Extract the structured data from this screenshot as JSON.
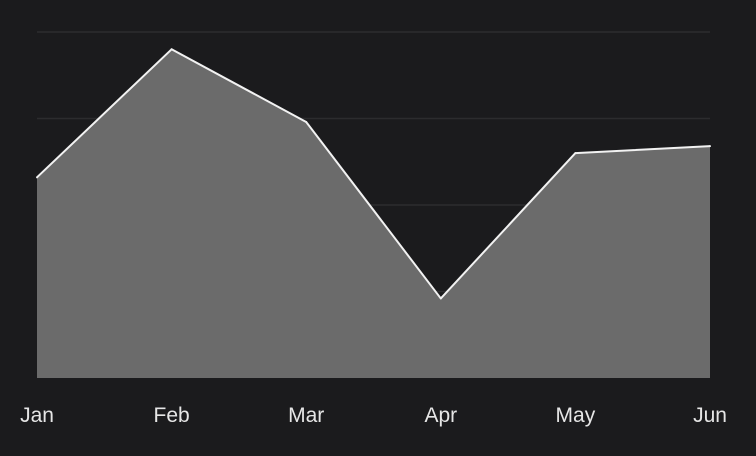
{
  "chart_data": {
    "type": "area",
    "title": "",
    "xlabel": "",
    "ylabel": "",
    "categories": [
      "Jan",
      "Feb",
      "Mar",
      "Apr",
      "May",
      "Jun"
    ],
    "series": [
      {
        "values": [
          58,
          95,
          74,
          23,
          65,
          67
        ]
      }
    ],
    "ylim": [
      0,
      100
    ],
    "y_gridlines": [
      25,
      50,
      75,
      100
    ],
    "grid": "horizontal",
    "legend": "none",
    "colors": {
      "background": "#1b1b1d",
      "area_fill": "#6b6b6b",
      "line": "#f2f2f2",
      "grid": "#ffffff"
    }
  }
}
